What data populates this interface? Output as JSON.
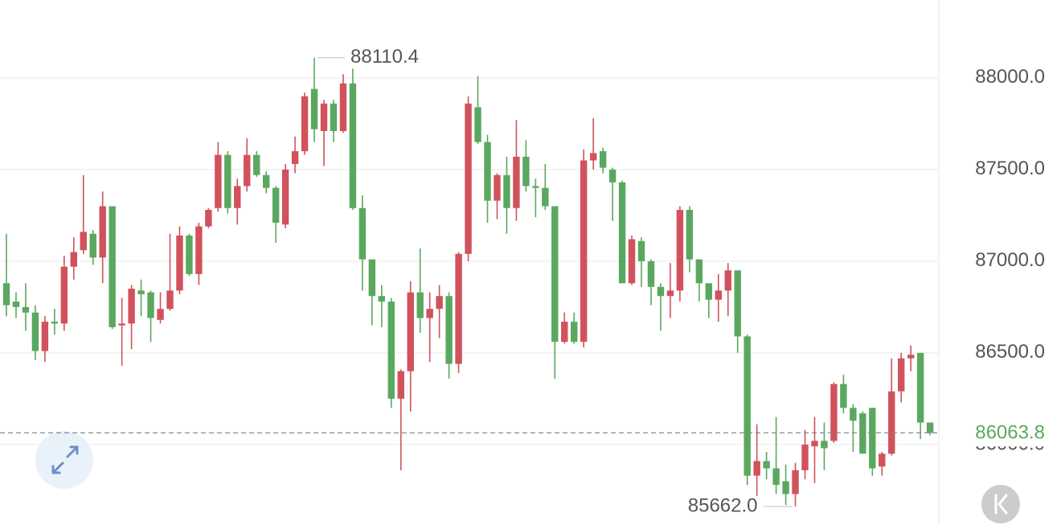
{
  "chart_data": {
    "type": "candlestick",
    "open": [
      86880,
      86780,
      86750,
      86720,
      86510,
      86670,
      86660,
      86970,
      87060,
      87150,
      87020,
      87300,
      86650,
      86660,
      86840,
      86830,
      86680,
      86740,
      86840,
      87140,
      86930,
      87190,
      87290,
      87580,
      87290,
      87410,
      87580,
      87470,
      87400,
      87200,
      87530,
      87600,
      87940,
      87710,
      87860,
      87710,
      87970,
      87290,
      87010,
      86810,
      86780,
      86250,
      86400,
      86830,
      86690,
      86740,
      86810,
      86440,
      87040,
      87840,
      87650,
      87330,
      87470,
      87290,
      87570,
      87410,
      87400,
      87300,
      86560,
      86670,
      86560,
      87550,
      87600,
      87500,
      87430,
      86880,
      87110,
      87000,
      86860,
      86810,
      86840,
      87280,
      87010,
      86880,
      86790,
      86840,
      86950,
      86590,
      85830,
      85910,
      85870,
      85800,
      85730,
      85860,
      85990,
      86020,
      86020,
      86330,
      86200,
      86170,
      86200,
      85880,
      85950,
      86290,
      86470,
      86500,
      86120
    ],
    "high": [
      87150,
      86830,
      86880,
      86760,
      86700,
      86740,
      87030,
      87130,
      87470,
      87170,
      87380,
      87300,
      86800,
      86870,
      86900,
      86840,
      86830,
      87150,
      87190,
      87150,
      87210,
      87290,
      87650,
      87600,
      87450,
      87670,
      87600,
      87490,
      87410,
      87530,
      87680,
      87920,
      88110.4,
      87880,
      87880,
      88020,
      88050,
      87360,
      87010,
      86870,
      86800,
      86410,
      86890,
      87070,
      86830,
      86870,
      86830,
      87050,
      87900,
      88010,
      87690,
      87480,
      87570,
      87770,
      87660,
      87450,
      87530,
      87300,
      86720,
      86720,
      87610,
      87780,
      87620,
      87510,
      87440,
      87140,
      87130,
      87010,
      86880,
      86990,
      87300,
      87300,
      87010,
      86880,
      86930,
      86990,
      86950,
      86600,
      86110,
      85960,
      86150,
      85890,
      85900,
      86080,
      86150,
      86120,
      86340,
      86380,
      86220,
      86180,
      86200,
      85960,
      86470,
      86500,
      86540,
      86500,
      86120
    ],
    "low": [
      86700,
      86690,
      86620,
      86460,
      86450,
      86600,
      86620,
      86900,
      87040,
      86980,
      86880,
      86630,
      86430,
      86520,
      86700,
      86560,
      86660,
      86730,
      86820,
      86920,
      86870,
      87180,
      87270,
      87260,
      87200,
      87380,
      87460,
      87370,
      87100,
      87180,
      87480,
      87580,
      87650,
      87520,
      87650,
      87700,
      87280,
      86840,
      86650,
      86640,
      86200,
      85860,
      86180,
      86610,
      86450,
      86580,
      86360,
      86390,
      87000,
      87640,
      87210,
      87230,
      87150,
      87220,
      87380,
      87240,
      87280,
      86360,
      86550,
      86550,
      86530,
      87500,
      87480,
      87220,
      86880,
      86870,
      86860,
      86760,
      86620,
      86690,
      86780,
      86940,
      86780,
      86690,
      86670,
      86700,
      86500,
      85780,
      85720,
      85810,
      85730,
      85670,
      85662,
      85810,
      85790,
      85860,
      86010,
      86170,
      85960,
      85950,
      85830,
      85830,
      85940,
      86230,
      86400,
      86030,
      86050
    ],
    "close": [
      86760,
      86750,
      86720,
      86510,
      86670,
      86660,
      86970,
      87050,
      87160,
      87020,
      87300,
      86640,
      86660,
      86850,
      86820,
      86690,
      86740,
      86840,
      87140,
      86930,
      87190,
      87280,
      87580,
      87290,
      87410,
      87580,
      87470,
      87400,
      87210,
      87500,
      87600,
      87900,
      87720,
      87860,
      87710,
      87970,
      87290,
      87010,
      86810,
      86780,
      86250,
      86400,
      86830,
      86690,
      86740,
      86810,
      86440,
      87040,
      87860,
      87650,
      87330,
      87470,
      87290,
      87570,
      87410,
      87400,
      87300,
      86560,
      86670,
      86560,
      87550,
      87590,
      87510,
      87430,
      86880,
      87120,
      87000,
      86860,
      86810,
      86840,
      87280,
      87010,
      86880,
      86790,
      86840,
      86950,
      86590,
      85830,
      85910,
      85870,
      85780,
      85730,
      85860,
      86000,
      86020,
      85980,
      86330,
      86200,
      86130,
      85950,
      85870,
      85950,
      86290,
      86470,
      86490,
      86120,
      86063.8
    ],
    "up_color": "#d1525c",
    "down_color": "#5aa85f",
    "ylim": [
      85561,
      88425
    ],
    "yticks": [
      {
        "value": 86000,
        "label": "86000.0"
      },
      {
        "value": 86500,
        "label": "86500.0"
      },
      {
        "value": 87000,
        "label": "87000.0"
      },
      {
        "value": 87500,
        "label": "87500.0"
      },
      {
        "value": 88000,
        "label": "88000.0"
      }
    ],
    "grid": true,
    "annotations": [
      {
        "value": 88110.4,
        "label": "88110.4"
      },
      {
        "value": 85662,
        "label": "85662.0"
      }
    ],
    "last_price": {
      "value": 86063.8,
      "label": "86063.8"
    }
  }
}
